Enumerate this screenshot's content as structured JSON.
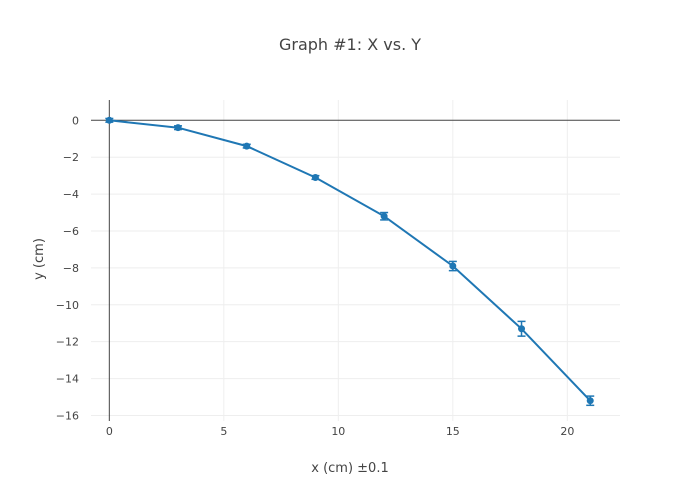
{
  "chart_data": {
    "type": "line",
    "title": "Graph #1: X vs. Y",
    "xlabel": "x (cm) ±0.1",
    "ylabel": "y (cm)",
    "xlim": [
      -0.8,
      22.3
    ],
    "ylim": [
      -16.3,
      1.1
    ],
    "xticks": [
      0,
      5,
      10,
      15,
      20
    ],
    "yticks": [
      0,
      -2,
      -4,
      -6,
      -8,
      -10,
      -12,
      -14,
      -16
    ],
    "grid": true,
    "legend": "none",
    "series": [
      {
        "color": "#1f77b4",
        "x": [
          0,
          3,
          6,
          9,
          12,
          15,
          18,
          21
        ],
        "y": [
          0,
          -0.4,
          -1.4,
          -3.1,
          -5.2,
          -7.9,
          -11.3,
          -15.2
        ],
        "error_y": [
          0.1,
          0.1,
          0.1,
          0.1,
          0.2,
          0.25,
          0.4,
          0.25
        ]
      }
    ]
  }
}
